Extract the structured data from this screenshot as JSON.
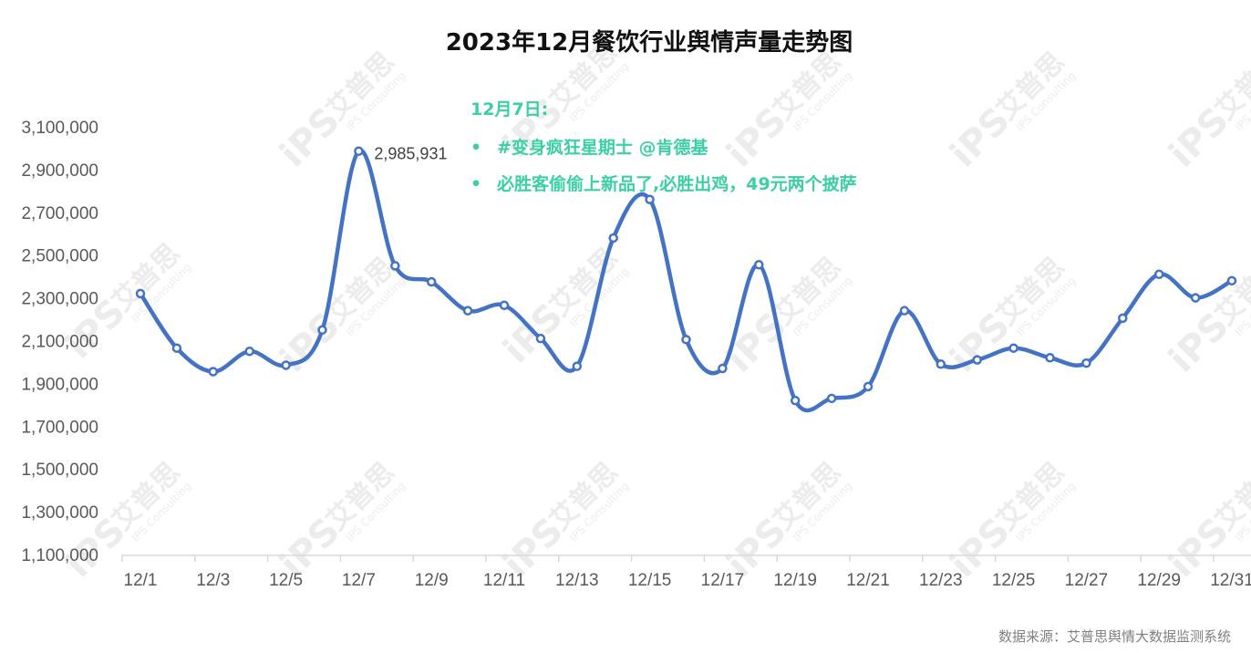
{
  "title": "2023年12月餐饮行业舆情声量走势图",
  "source": "数据来源：艾普思舆情大数据监测系统",
  "annotation": {
    "heading": "12月7日:",
    "bullet": "•",
    "items": [
      "#变身疯狂星期士 @肯德基",
      "必胜客偷偷上新品了,必胜出鸡，49元两个披萨"
    ]
  },
  "watermark": {
    "logo": "iPS",
    "cn": "艾普思",
    "en": "IPS Consulting"
  },
  "colors": {
    "line": "#4472c4",
    "annotation": "#3ccfa6",
    "axis": "#d9d9d9",
    "text": "#595959"
  },
  "chart_data": {
    "type": "line",
    "title": "2023年12月餐饮行业舆情声量走势图",
    "xlabel": "",
    "ylabel": "",
    "x": [
      "12/1",
      "12/2",
      "12/3",
      "12/4",
      "12/5",
      "12/6",
      "12/7",
      "12/8",
      "12/9",
      "12/10",
      "12/11",
      "12/12",
      "12/13",
      "12/14",
      "12/15",
      "12/16",
      "12/17",
      "12/18",
      "12/19",
      "12/20",
      "12/21",
      "12/22",
      "12/23",
      "12/24",
      "12/25",
      "12/26",
      "12/27",
      "12/28",
      "12/29",
      "12/30",
      "12/31"
    ],
    "x_tick_labels": [
      "12/1",
      "12/3",
      "12/5",
      "12/7",
      "12/9",
      "12/11",
      "12/13",
      "12/15",
      "12/17",
      "12/19",
      "12/21",
      "12/23",
      "12/25",
      "12/27",
      "12/29",
      "12/31"
    ],
    "series": [
      {
        "values": [
          2320000,
          2065000,
          1955000,
          2050000,
          1985000,
          2150000,
          2985931,
          2450000,
          2375000,
          2240000,
          2265000,
          2110000,
          1980000,
          2580000,
          2760000,
          2105000,
          1970000,
          2455000,
          1820000,
          1830000,
          1885000,
          2240000,
          1990000,
          2010000,
          2065000,
          2020000,
          1995000,
          2205000,
          2410000,
          2300000,
          2380000
        ],
        "smooth": true,
        "markers": true
      }
    ],
    "data_labels": [
      {
        "x": "12/7",
        "text": "2,985,931"
      }
    ],
    "y_tick_labels": [
      "1,100,000",
      "1,300,000",
      "1,500,000",
      "1,700,000",
      "1,900,000",
      "2,100,000",
      "2,300,000",
      "2,500,000",
      "2,700,000",
      "2,900,000",
      "3,100,000"
    ],
    "ylim": [
      1100000,
      3100000
    ],
    "grid": false,
    "legend": "none"
  }
}
